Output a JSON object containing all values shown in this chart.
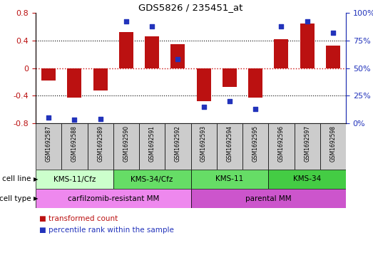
{
  "title": "GDS5826 / 235451_at",
  "samples": [
    "GSM1692587",
    "GSM1692588",
    "GSM1692589",
    "GSM1692590",
    "GSM1692591",
    "GSM1692592",
    "GSM1692593",
    "GSM1692594",
    "GSM1692595",
    "GSM1692596",
    "GSM1692597",
    "GSM1692598"
  ],
  "bar_values": [
    -0.18,
    -0.43,
    -0.32,
    0.52,
    0.46,
    0.35,
    -0.48,
    -0.27,
    -0.43,
    0.42,
    0.65,
    0.33
  ],
  "percentile_values": [
    5,
    3,
    4,
    92,
    88,
    58,
    15,
    20,
    13,
    88,
    92,
    82
  ],
  "bar_color": "#BB1111",
  "dot_color": "#2233BB",
  "ylim_left": [
    -0.8,
    0.8
  ],
  "ylim_right": [
    0,
    100
  ],
  "yticks_left": [
    -0.8,
    -0.4,
    0,
    0.4,
    0.8
  ],
  "ytick_labels_left": [
    "-0.8",
    "-0.4",
    "0",
    "0.4",
    "0.8"
  ],
  "yticks_right": [
    0,
    25,
    50,
    75,
    100
  ],
  "ytick_labels_right": [
    "0%",
    "25%",
    "50%",
    "75%",
    "100%"
  ],
  "hlines": [
    -0.4,
    0.0,
    0.4
  ],
  "hline_dotted_color": "#000000",
  "hline_zero_color": "#CC1111",
  "cell_line_groups": [
    {
      "label": "KMS-11/Cfz",
      "start": 0,
      "end": 3,
      "color": "#CCFFCC"
    },
    {
      "label": "KMS-34/Cfz",
      "start": 3,
      "end": 6,
      "color": "#66DD66"
    },
    {
      "label": "KMS-11",
      "start": 6,
      "end": 9,
      "color": "#66DD66"
    },
    {
      "label": "KMS-34",
      "start": 9,
      "end": 12,
      "color": "#44CC44"
    }
  ],
  "cell_type_groups": [
    {
      "label": "carfilzomib-resistant MM",
      "start": 0,
      "end": 6,
      "color": "#EE88EE"
    },
    {
      "label": "parental MM",
      "start": 6,
      "end": 12,
      "color": "#CC55CC"
    }
  ],
  "cell_line_label": "cell line",
  "cell_type_label": "cell type",
  "legend_bar_label": "transformed count",
  "legend_dot_label": "percentile rank within the sample",
  "sample_box_color": "#CCCCCC",
  "fig_width": 5.23,
  "fig_height": 3.93,
  "dpi": 100
}
